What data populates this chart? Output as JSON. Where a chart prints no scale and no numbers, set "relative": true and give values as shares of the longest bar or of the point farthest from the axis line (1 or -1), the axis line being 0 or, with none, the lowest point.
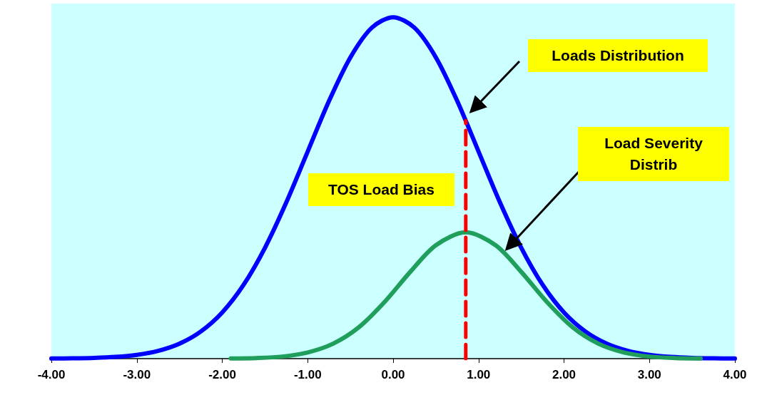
{
  "chart_data": {
    "type": "line",
    "relative": true,
    "xlim": [
      -4,
      4
    ],
    "xticks": [
      {
        "value": -4,
        "label": "-4.00"
      },
      {
        "value": -3,
        "label": "-3.00"
      },
      {
        "value": -2,
        "label": "-2.00"
      },
      {
        "value": -1,
        "label": "-1.00"
      },
      {
        "value": 0,
        "label": "0.00"
      },
      {
        "value": 1,
        "label": "1.00"
      },
      {
        "value": 2,
        "label": "2.00"
      },
      {
        "value": 3,
        "label": "3.00"
      },
      {
        "value": 4,
        "label": "4.00"
      }
    ],
    "grid": false,
    "marker": "none",
    "line_style": "solid",
    "series": [
      {
        "color": "#0000ff",
        "x": [
          -4,
          -3.75,
          -3.5,
          -3.25,
          -3,
          -2.75,
          -2.5,
          -2.25,
          -2,
          -1.75,
          -1.5,
          -1.25,
          -1,
          -0.75,
          -0.5,
          -0.25,
          0,
          0.25,
          0.5,
          0.75,
          1,
          1.25,
          1.5,
          1.75,
          2,
          2.25,
          2.5,
          2.75,
          3,
          3.25,
          3.5,
          3.75,
          4
        ],
        "values": [
          0.0003,
          0.0009,
          0.0022,
          0.0051,
          0.0111,
          0.0228,
          0.0439,
          0.0796,
          0.1353,
          0.2163,
          0.3247,
          0.4578,
          0.6065,
          0.7548,
          0.8825,
          0.9692,
          1,
          0.9692,
          0.8825,
          0.7548,
          0.6065,
          0.4578,
          0.3247,
          0.2163,
          0.1353,
          0.0796,
          0.0439,
          0.0228,
          0.0111,
          0.0051,
          0.0022,
          0.0009,
          0.0003
        ]
      },
      {
        "color": "#1f9e5c",
        "x": [
          -1.9,
          -1.6,
          -1.3,
          -1,
          -0.7,
          -0.4,
          -0.1,
          0.2,
          0.5,
          0.85,
          1.2,
          1.5,
          1.8,
          2.1,
          2.4,
          2.7,
          3,
          3.3,
          3.6
        ],
        "values": [
          0.0004,
          0.0018,
          0.006,
          0.018,
          0.044,
          0.092,
          0.166,
          0.254,
          0.332,
          0.37,
          0.332,
          0.254,
          0.166,
          0.092,
          0.044,
          0.018,
          0.006,
          0.0018,
          0.0004
        ]
      },
      {
        "color": "#ff0000",
        "line_style": "dashed",
        "x": [
          0.85,
          0.85
        ],
        "values": [
          0,
          0.697
        ]
      }
    ],
    "annotations": [
      "Loads Distribution",
      "Load Severity Distrib",
      "TOS Load Bias"
    ]
  }
}
